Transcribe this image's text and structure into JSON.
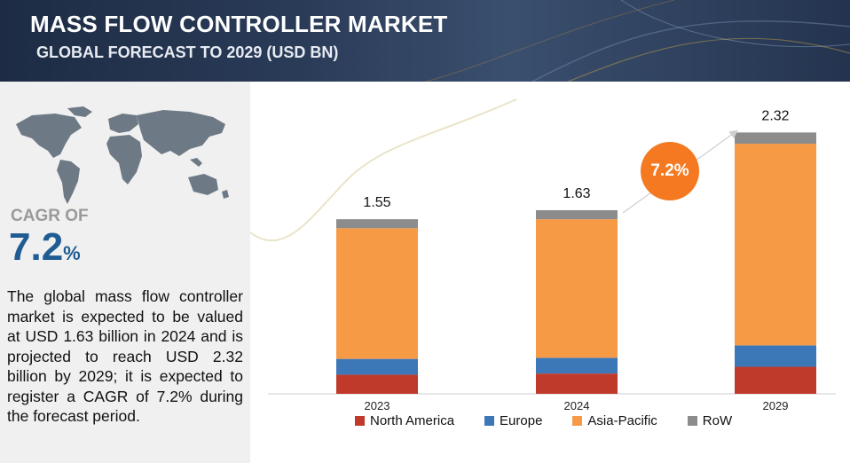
{
  "header": {
    "title": "MASS FLOW CONTROLLER MARKET",
    "subtitle": "GLOBAL FORECAST TO 2029 (USD BN)"
  },
  "left_panel": {
    "cagr_label": "CAGR OF",
    "cagr_value": "7.2",
    "cagr_unit": "%",
    "description": "The global mass flow controller market is expected to be valued at USD 1.63 billion in 2024 and is projected to reach USD 2.32 billion by 2029; it is expected to register a CAGR of 7.2% during the forecast period."
  },
  "badge": {
    "text": "7.2%"
  },
  "colors": {
    "north_america": "#bf3a2b",
    "europe": "#3c78b8",
    "asia_pacific": "#f69a46",
    "row": "#8c8c8c",
    "badge": "#f47920",
    "header_bg": "#24344f"
  },
  "chart_data": {
    "type": "bar",
    "stacked": true,
    "categories": [
      "2023",
      "2024",
      "2029"
    ],
    "totals": [
      1.55,
      1.63,
      2.32
    ],
    "series": [
      {
        "name": "North America",
        "color": "#bf3a2b",
        "values": [
          0.17,
          0.18,
          0.24
        ]
      },
      {
        "name": "Europe",
        "color": "#3c78b8",
        "values": [
          0.14,
          0.14,
          0.19
        ]
      },
      {
        "name": "Asia-Pacific",
        "color": "#f69a46",
        "values": [
          1.16,
          1.23,
          1.79
        ]
      },
      {
        "name": "RoW",
        "color": "#8c8c8c",
        "values": [
          0.08,
          0.08,
          0.1
        ]
      }
    ],
    "annotation": "7.2%",
    "legend_position": "bottom"
  }
}
